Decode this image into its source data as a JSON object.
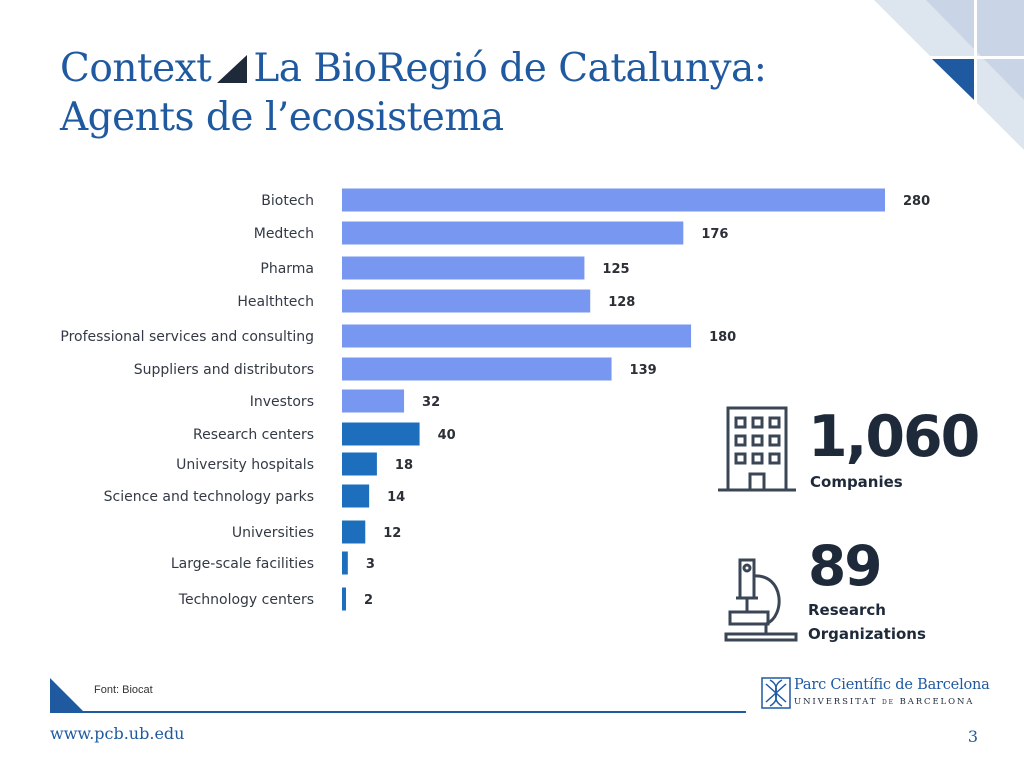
{
  "slide": {
    "title_part1": "Context",
    "title_part2": "La BioRegió de Catalunya:",
    "title_line2": "Agents de l’ecosistema",
    "source": "Font: Biocat",
    "footer_url": "www.pcb.ub.edu",
    "page_number": "3",
    "accent_color": "#1f5aa0",
    "corner_colors": [
      "#c9d5e6",
      "#1f5aa0"
    ]
  },
  "stats": {
    "companies_number": "1,060",
    "companies_label": "Companies",
    "research_number": "89",
    "research_label_1": "Research",
    "research_label_2": "Organizations",
    "companies_icon": "building-icon",
    "research_icon": "microscope-icon"
  },
  "logo": {
    "name": "Parc Científic de Barcelona",
    "sub_prefix": "UNIVERSITAT",
    "sub_de": "DE",
    "sub_suffix": "BARCELONA"
  },
  "chart_data": {
    "type": "bar",
    "orientation": "horizontal",
    "categories": [
      "Biotech",
      "Medtech",
      "Pharma",
      "Healthtech",
      "Professional services and consulting",
      "Suppliers and distributors",
      "Investors",
      "Research centers",
      "University hospitals",
      "Science and technology parks",
      "Universities",
      "Large-scale facilities",
      "Technology centers"
    ],
    "values": [
      280,
      176,
      125,
      128,
      180,
      139,
      32,
      40,
      18,
      14,
      12,
      3,
      2
    ],
    "groups": [
      "company",
      "company",
      "company",
      "company",
      "company",
      "company",
      "company",
      "research",
      "research",
      "research",
      "research",
      "research",
      "research"
    ],
    "group_colors": {
      "company": "#7797f1",
      "research": "#1d6fbd"
    },
    "value_labels": true,
    "grid": false,
    "legend": "none"
  }
}
